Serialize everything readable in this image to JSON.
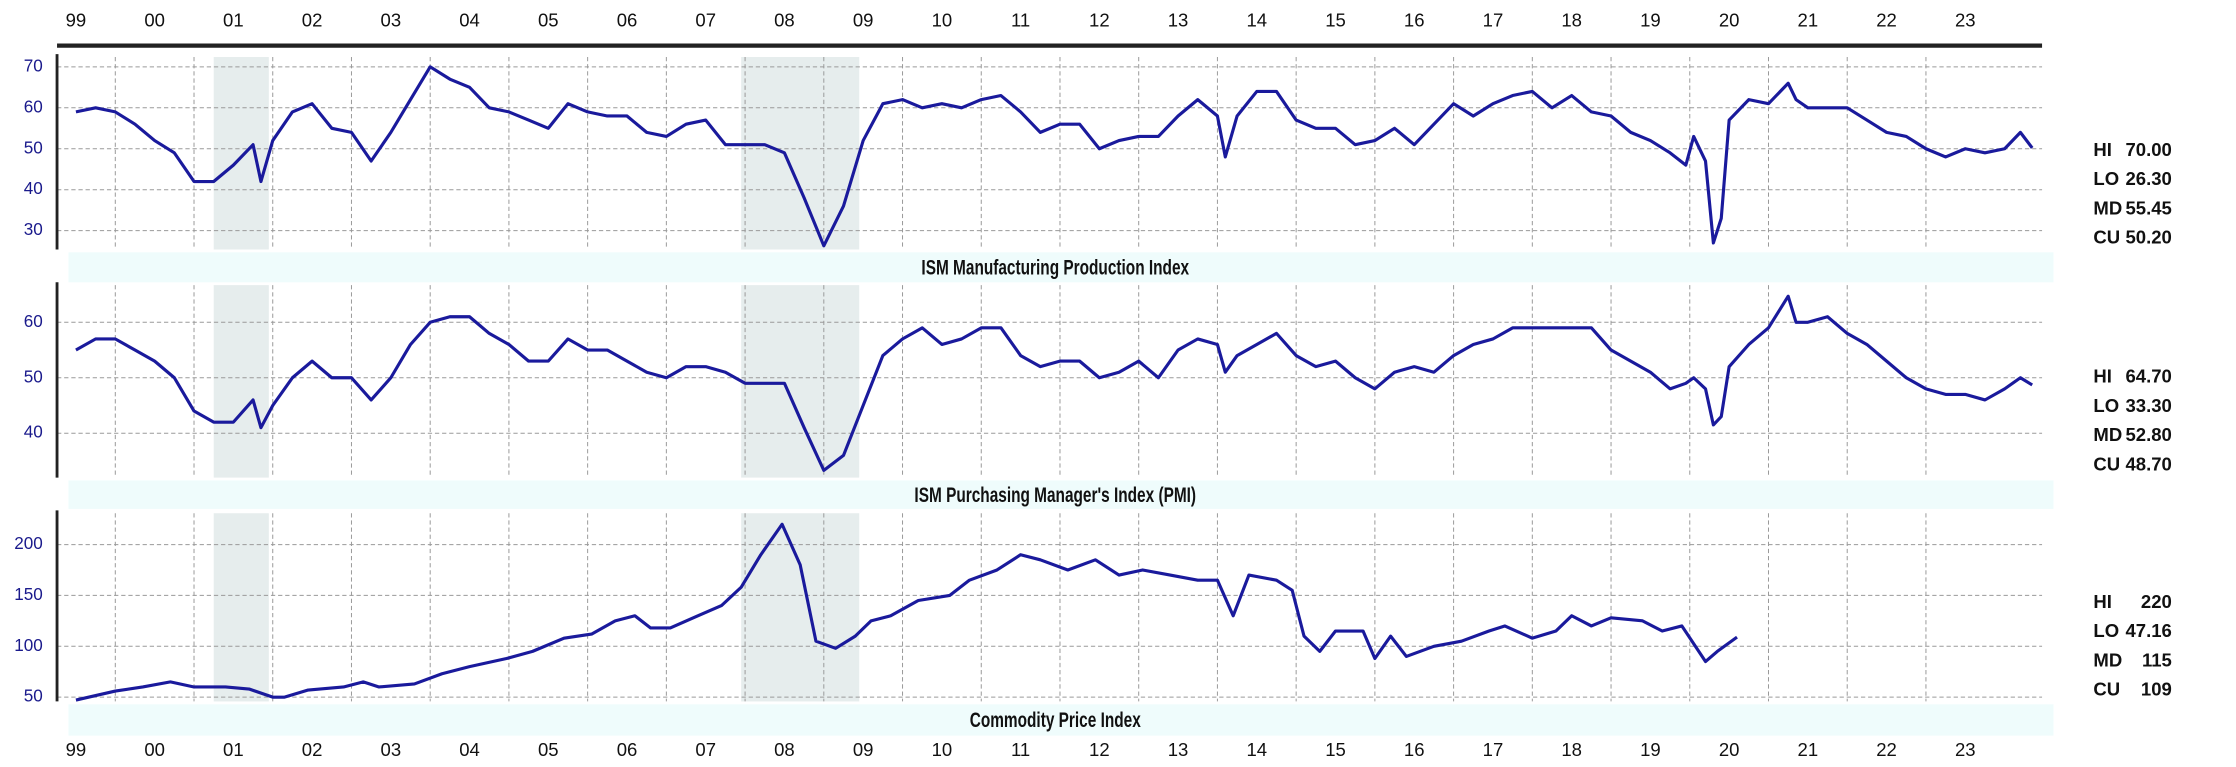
{
  "chart_data": [
    {
      "type": "line",
      "title": "ISM Manufacturing Production Index",
      "color": "#1a1a9c",
      "grid": true,
      "xlim": [
        1999.26,
        2024.62
      ],
      "ylim": [
        25.4,
        72.4
      ],
      "yticks": [
        30,
        40,
        50,
        60,
        70
      ],
      "xticks": [
        {
          "value": 1999,
          "label": "99"
        },
        {
          "value": 2000,
          "label": "00"
        },
        {
          "value": 2001,
          "label": "01"
        },
        {
          "value": 2002,
          "label": "02"
        },
        {
          "value": 2003,
          "label": "03"
        },
        {
          "value": 2004,
          "label": "04"
        },
        {
          "value": 2005,
          "label": "05"
        },
        {
          "value": 2006,
          "label": "06"
        },
        {
          "value": 2007,
          "label": "07"
        },
        {
          "value": 2008,
          "label": "08"
        },
        {
          "value": 2009,
          "label": "09"
        },
        {
          "value": 2010,
          "label": "10"
        },
        {
          "value": 2011,
          "label": "11"
        },
        {
          "value": 2012,
          "label": "12"
        },
        {
          "value": 2013,
          "label": "13"
        },
        {
          "value": 2014,
          "label": "14"
        },
        {
          "value": 2015,
          "label": "15"
        },
        {
          "value": 2016,
          "label": "16"
        },
        {
          "value": 2017,
          "label": "17"
        },
        {
          "value": 2018,
          "label": "18"
        },
        {
          "value": 2019,
          "label": "19"
        },
        {
          "value": 2020,
          "label": "20"
        },
        {
          "value": 2021,
          "label": "21"
        },
        {
          "value": 2022,
          "label": "22"
        },
        {
          "value": 2023,
          "label": "23"
        }
      ],
      "shaded": [
        [
          2001.25,
          2001.95
        ],
        [
          2007.95,
          2009.45
        ]
      ],
      "stats": [
        {
          "label": "HI",
          "value": "70.00"
        },
        {
          "label": "LO",
          "value": "26.30"
        },
        {
          "label": "MD",
          "value": "55.45"
        },
        {
          "label": "CU",
          "value": "50.20"
        }
      ],
      "x": [
        1999.5,
        1999.75,
        2000,
        2000.25,
        2000.5,
        2000.75,
        2001,
        2001.25,
        2001.5,
        2001.75,
        2001.85,
        2002,
        2002.25,
        2002.5,
        2002.75,
        2003,
        2003.25,
        2003.5,
        2003.75,
        2004,
        2004.25,
        2004.5,
        2004.75,
        2005,
        2005.25,
        2005.5,
        2005.75,
        2006,
        2006.25,
        2006.5,
        2006.75,
        2007,
        2007.25,
        2007.5,
        2007.75,
        2008,
        2008.25,
        2008.5,
        2008.75,
        2009,
        2009.25,
        2009.5,
        2009.75,
        2010,
        2010.25,
        2010.5,
        2010.75,
        2011,
        2011.25,
        2011.5,
        2011.75,
        2012,
        2012.25,
        2012.5,
        2012.75,
        2013,
        2013.25,
        2013.5,
        2013.75,
        2014,
        2014.1,
        2014.25,
        2014.5,
        2014.75,
        2015,
        2015.25,
        2015.5,
        2015.75,
        2016,
        2016.25,
        2016.5,
        2016.75,
        2017,
        2017.25,
        2017.5,
        2017.75,
        2018,
        2018.25,
        2018.5,
        2018.75,
        2019,
        2019.25,
        2019.5,
        2019.75,
        2019.95,
        2020.05,
        2020.2,
        2020.3,
        2020.4,
        2020.5,
        2020.75,
        2021,
        2021.25,
        2021.35,
        2021.5,
        2021.75,
        2022,
        2022.25,
        2022.5,
        2022.75,
        2023,
        2023.25,
        2023.5,
        2023.75,
        2024,
        2024.2,
        2024.35
      ],
      "values": [
        59,
        60,
        59,
        56,
        52,
        49,
        42,
        42,
        46,
        51,
        42,
        52,
        59,
        61,
        55,
        54,
        47,
        54,
        62,
        70,
        67,
        65,
        60,
        59,
        57,
        55,
        61,
        59,
        58,
        58,
        54,
        53,
        56,
        57,
        51,
        51,
        51,
        49,
        38,
        26.3,
        36,
        52,
        61,
        62,
        60,
        61,
        60,
        62,
        63,
        59,
        54,
        56,
        56,
        50,
        52,
        53,
        53,
        58,
        62,
        58,
        48,
        58,
        64,
        64,
        57,
        55,
        55,
        51,
        52,
        55,
        51,
        56,
        61,
        58,
        61,
        63,
        64,
        60,
        63,
        59,
        58,
        54,
        52,
        49,
        46,
        53,
        47,
        27,
        33,
        57,
        62,
        61,
        66,
        62,
        60,
        60,
        60,
        57,
        54,
        53,
        50,
        48,
        50,
        49,
        50,
        54,
        50.2
      ]
    },
    {
      "type": "line",
      "title": "ISM Purchasing Manager's Index (PMI)",
      "color": "#1a1a9c",
      "grid": true,
      "xlim": [
        1999.26,
        2024.62
      ],
      "ylim": [
        32,
        66.7
      ],
      "yticks": [
        40,
        50,
        60
      ],
      "xticks": [
        1999,
        2000,
        2001,
        2002,
        2003,
        2004,
        2005,
        2006,
        2007,
        2008,
        2009,
        2010,
        2011,
        2012,
        2013,
        2014,
        2015,
        2016,
        2017,
        2018,
        2019,
        2020,
        2021,
        2022,
        2023
      ],
      "shaded": [
        [
          2001.25,
          2001.95
        ],
        [
          2007.95,
          2009.45
        ]
      ],
      "stats": [
        {
          "label": "HI",
          "value": "64.70"
        },
        {
          "label": "LO",
          "value": "33.30"
        },
        {
          "label": "MD",
          "value": "52.80"
        },
        {
          "label": "CU",
          "value": "48.70"
        }
      ],
      "x": [
        1999.5,
        1999.75,
        2000,
        2000.25,
        2000.5,
        2000.75,
        2001,
        2001.25,
        2001.5,
        2001.75,
        2001.85,
        2002,
        2002.25,
        2002.5,
        2002.75,
        2003,
        2003.25,
        2003.5,
        2003.75,
        2004,
        2004.25,
        2004.5,
        2004.75,
        2005,
        2005.25,
        2005.5,
        2005.75,
        2006,
        2006.25,
        2006.5,
        2006.75,
        2007,
        2007.25,
        2007.5,
        2007.75,
        2008,
        2008.25,
        2008.5,
        2008.75,
        2009,
        2009.25,
        2009.5,
        2009.75,
        2010,
        2010.25,
        2010.5,
        2010.75,
        2011,
        2011.25,
        2011.5,
        2011.75,
        2012,
        2012.25,
        2012.5,
        2012.75,
        2013,
        2013.25,
        2013.5,
        2013.75,
        2014,
        2014.1,
        2014.25,
        2014.5,
        2014.75,
        2015,
        2015.25,
        2015.5,
        2015.75,
        2016,
        2016.25,
        2016.5,
        2016.75,
        2017,
        2017.25,
        2017.5,
        2017.75,
        2018,
        2018.25,
        2018.5,
        2018.75,
        2019,
        2019.25,
        2019.5,
        2019.75,
        2019.95,
        2020.05,
        2020.2,
        2020.3,
        2020.4,
        2020.5,
        2020.75,
        2021,
        2021.25,
        2021.35,
        2021.5,
        2021.75,
        2022,
        2022.25,
        2022.5,
        2022.75,
        2023,
        2023.25,
        2023.5,
        2023.75,
        2024,
        2024.2,
        2024.35
      ],
      "values": [
        55,
        57,
        57,
        55,
        53,
        50,
        44,
        42,
        42,
        46,
        41,
        45,
        50,
        53,
        50,
        50,
        46,
        50,
        56,
        60,
        61,
        61,
        58,
        56,
        53,
        53,
        57,
        55,
        55,
        53,
        51,
        50,
        52,
        52,
        51,
        49,
        49,
        49,
        41,
        33.3,
        36,
        45,
        54,
        57,
        59,
        56,
        57,
        59,
        59,
        54,
        52,
        53,
        53,
        50,
        51,
        53,
        50,
        55,
        57,
        56,
        51,
        54,
        56,
        58,
        54,
        52,
        53,
        50,
        48,
        51,
        52,
        51,
        54,
        56,
        57,
        59,
        59,
        59,
        59,
        59,
        55,
        53,
        51,
        48,
        49,
        50,
        48,
        41.5,
        43,
        52,
        56,
        59,
        64.7,
        60,
        60,
        61,
        58,
        56,
        53,
        50,
        48,
        47,
        47,
        46,
        48,
        50,
        48.7
      ]
    },
    {
      "type": "line",
      "title": "Commodity Price Index",
      "color": "#1a1a9c",
      "grid": true,
      "xlim": [
        1999.26,
        2024.62
      ],
      "ylim": [
        45.8,
        230.8
      ],
      "yticks": [
        50,
        100,
        150,
        200
      ],
      "xticks": [
        {
          "value": 1999,
          "label": "99"
        },
        {
          "value": 2000,
          "label": "00"
        },
        {
          "value": 2001,
          "label": "01"
        },
        {
          "value": 2002,
          "label": "02"
        },
        {
          "value": 2003,
          "label": "03"
        },
        {
          "value": 2004,
          "label": "04"
        },
        {
          "value": 2005,
          "label": "05"
        },
        {
          "value": 2006,
          "label": "06"
        },
        {
          "value": 2007,
          "label": "07"
        },
        {
          "value": 2008,
          "label": "08"
        },
        {
          "value": 2009,
          "label": "09"
        },
        {
          "value": 2010,
          "label": "10"
        },
        {
          "value": 2011,
          "label": "11"
        },
        {
          "value": 2012,
          "label": "12"
        },
        {
          "value": 2013,
          "label": "13"
        },
        {
          "value": 2014,
          "label": "14"
        },
        {
          "value": 2015,
          "label": "15"
        },
        {
          "value": 2016,
          "label": "16"
        },
        {
          "value": 2017,
          "label": "17"
        },
        {
          "value": 2018,
          "label": "18"
        },
        {
          "value": 2019,
          "label": "19"
        },
        {
          "value": 2020,
          "label": "20"
        },
        {
          "value": 2021,
          "label": "21"
        },
        {
          "value": 2022,
          "label": "22"
        },
        {
          "value": 2023,
          "label": "23"
        }
      ],
      "shaded": [
        [
          2001.25,
          2001.95
        ],
        [
          2007.95,
          2009.45
        ]
      ],
      "stats": [
        {
          "label": "HI",
          "value": "220"
        },
        {
          "label": "LO",
          "value": "47.16"
        },
        {
          "label": "MD",
          "value": "115"
        },
        {
          "label": "CU",
          "value": "109"
        }
      ],
      "x": [
        1999.5,
        2000,
        2000.35,
        2000.7,
        2001,
        2001.4,
        2001.7,
        2002,
        2002.15,
        2002.45,
        2002.9,
        2003.15,
        2003.35,
        2003.8,
        2004.15,
        2004.5,
        2004.97,
        2005.3,
        2005.7,
        2006.05,
        2006.35,
        2006.6,
        2006.8,
        2007.05,
        2007.4,
        2007.7,
        2007.95,
        2008.2,
        2008.47,
        2008.7,
        2008.9,
        2009.15,
        2009.4,
        2009.6,
        2009.85,
        2010.2,
        2010.6,
        2010.85,
        2011.2,
        2011.5,
        2011.75,
        2012.1,
        2012.45,
        2012.75,
        2013.05,
        2013.4,
        2013.75,
        2014,
        2014.2,
        2014.4,
        2014.75,
        2014.95,
        2015.1,
        2015.3,
        2015.5,
        2015.85,
        2016,
        2016.2,
        2016.4,
        2016.75,
        2017.1,
        2017.45,
        2017.65,
        2018,
        2018.3,
        2018.5,
        2018.75,
        2019,
        2019.4,
        2019.65,
        2019.9,
        2020.2,
        2020.35,
        2020.6
      ],
      "values": [
        47.16,
        56,
        60,
        65,
        60,
        60,
        58,
        50,
        50,
        57,
        60,
        65,
        60,
        63,
        73,
        80,
        88,
        95,
        108,
        112,
        125,
        130,
        118,
        118,
        130,
        140,
        158,
        190,
        220,
        180,
        105,
        98,
        110,
        125,
        130,
        145,
        150,
        165,
        175,
        190,
        185,
        175,
        185,
        170,
        175,
        170,
        165,
        165,
        130,
        170,
        165,
        155,
        110,
        95,
        115,
        115,
        88,
        110,
        90,
        100,
        105,
        115,
        120,
        108,
        115,
        130,
        120,
        128,
        125,
        115,
        120,
        85,
        95,
        109
      ]
    }
  ]
}
